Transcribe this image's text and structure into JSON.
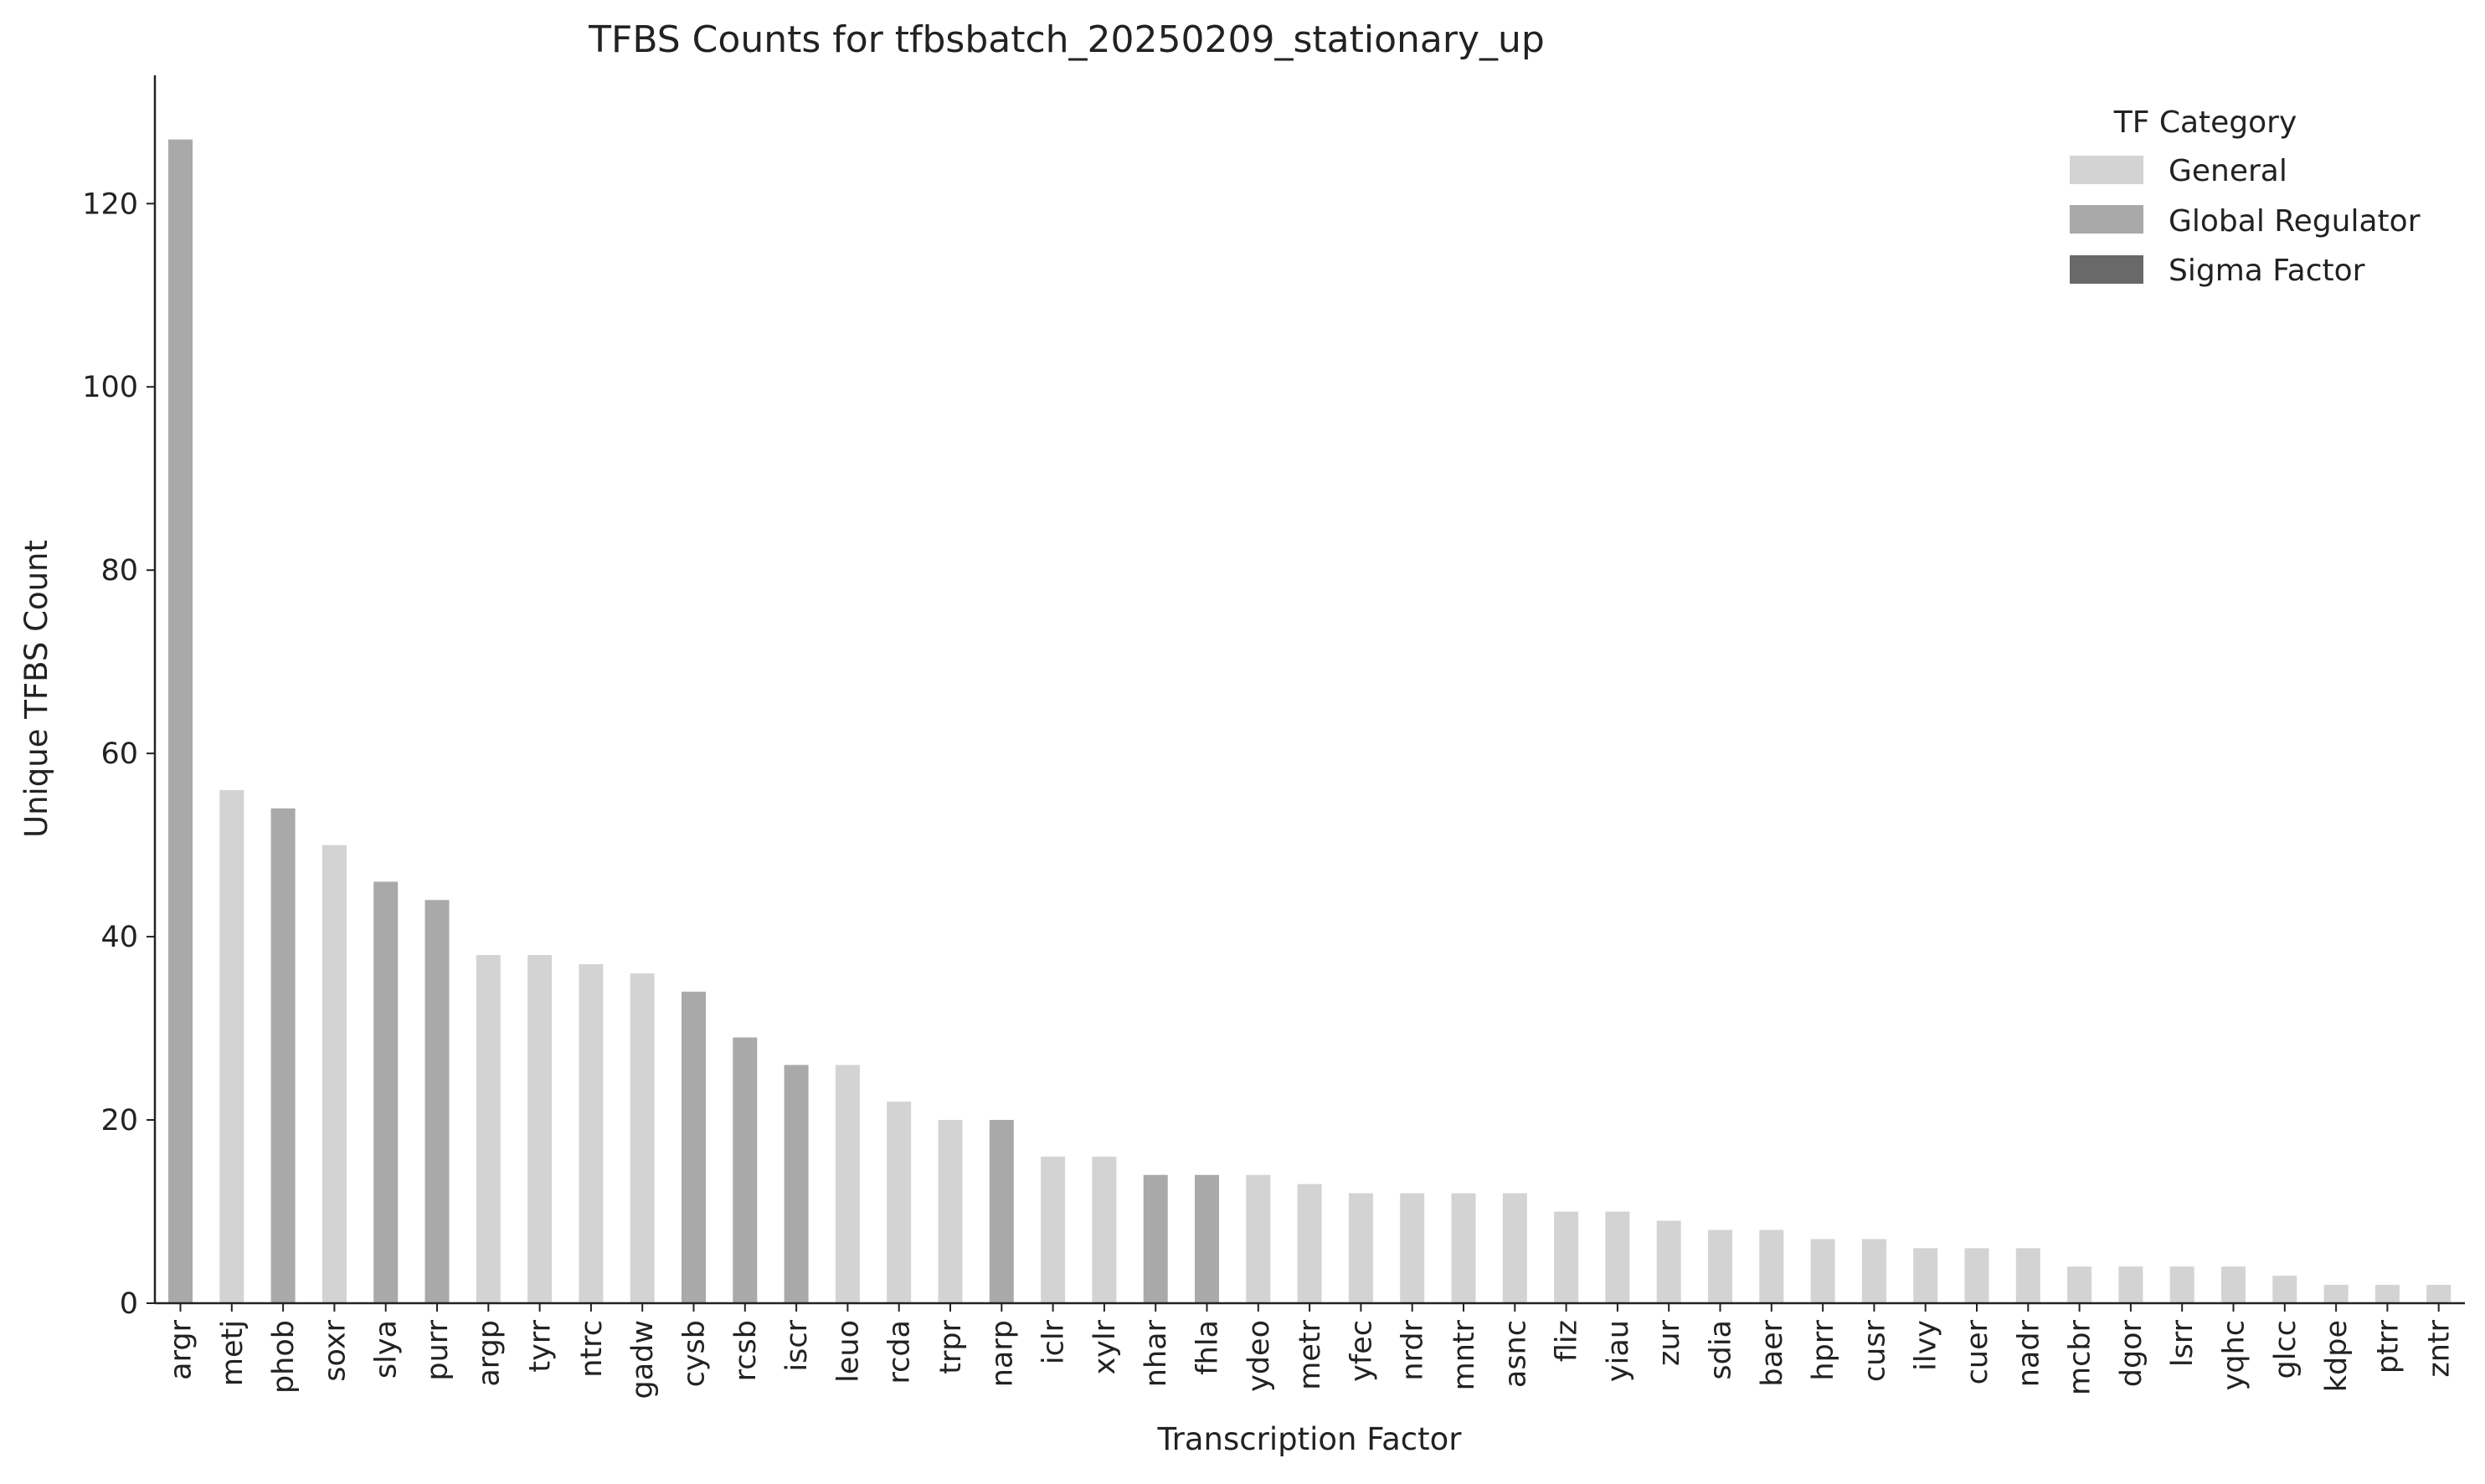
{
  "chart_data": {
    "type": "bar",
    "title": "TFBS Counts for tfbsbatch_20250209_stationary_up",
    "xlabel": "Transcription Factor",
    "ylabel": "Unique TFBS Count",
    "ylim": [
      0,
      134
    ],
    "yticks": [
      0,
      20,
      40,
      60,
      80,
      100,
      120
    ],
    "grid": false,
    "legend": {
      "title": "TF Category",
      "placement": "top-right",
      "entries": [
        {
          "name": "General",
          "color": "#d3d3d3"
        },
        {
          "name": "Global Regulator",
          "color": "#a9a9a9"
        },
        {
          "name": "Sigma Factor",
          "color": "#696969"
        }
      ]
    },
    "categories": [
      "argr",
      "metj",
      "phob",
      "soxr",
      "slya",
      "purr",
      "argp",
      "tyrr",
      "ntrc",
      "gadw",
      "cysb",
      "rcsb",
      "iscr",
      "leuo",
      "rcda",
      "trpr",
      "narp",
      "iclr",
      "xylr",
      "nhar",
      "fhla",
      "ydeo",
      "metr",
      "yfec",
      "nrdr",
      "mntr",
      "asnc",
      "fliz",
      "yiau",
      "zur",
      "sdia",
      "baer",
      "hprr",
      "cusr",
      "ilvy",
      "cuer",
      "nadr",
      "mcbr",
      "dgor",
      "lsrr",
      "yqhc",
      "glcc",
      "kdpe",
      "ptrr",
      "zntr"
    ],
    "values": [
      127,
      56,
      54,
      50,
      46,
      44,
      38,
      38,
      37,
      36,
      34,
      29,
      26,
      26,
      22,
      20,
      20,
      16,
      16,
      14,
      14,
      14,
      13,
      12,
      12,
      12,
      12,
      10,
      10,
      9,
      8,
      8,
      7,
      7,
      6,
      6,
      6,
      4,
      4,
      4,
      4,
      3,
      2,
      2,
      2
    ],
    "bar_category": [
      "Global Regulator",
      "General",
      "Global Regulator",
      "General",
      "Global Regulator",
      "Global Regulator",
      "General",
      "General",
      "General",
      "General",
      "Global Regulator",
      "Global Regulator",
      "Global Regulator",
      "General",
      "General",
      "General",
      "Global Regulator",
      "General",
      "General",
      "Global Regulator",
      "Global Regulator",
      "General",
      "General",
      "General",
      "General",
      "General",
      "General",
      "General",
      "General",
      "General",
      "General",
      "General",
      "General",
      "General",
      "General",
      "General",
      "General",
      "General",
      "General",
      "General",
      "General",
      "General",
      "General",
      "General",
      "General"
    ]
  }
}
